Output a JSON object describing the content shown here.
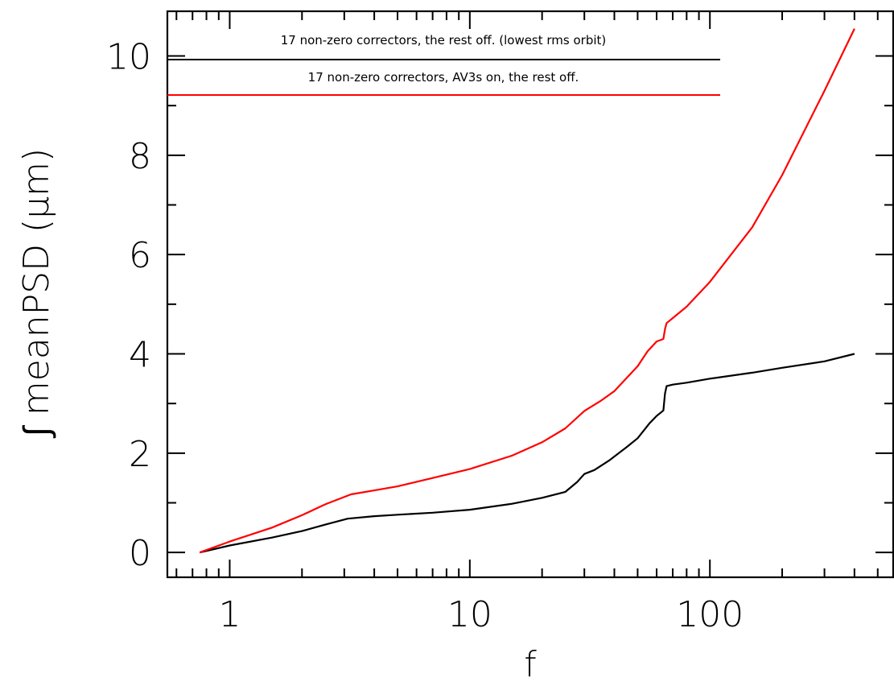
{
  "chart_data": {
    "type": "line",
    "title": "",
    "xlabel": "f",
    "ylabel": "∫ meanPSD  (μm)",
    "x_scale": "log",
    "xlim": [
      0.55,
      580
    ],
    "ylim": [
      -0.5,
      10.9
    ],
    "x_ticks": [
      1,
      10,
      100
    ],
    "x_tick_labels": [
      "1",
      "10",
      "100"
    ],
    "y_ticks": [
      0,
      2,
      4,
      6,
      8,
      10
    ],
    "y_tick_labels": [
      "0",
      "2",
      "4",
      "6",
      "8",
      "10"
    ],
    "grid": false,
    "legend_position": "top-left",
    "series": [
      {
        "name": "17 non-zero correctors, the rest off. (lowest rms orbit)",
        "color": "#000000",
        "x": [
          0.75,
          1,
          1.5,
          2,
          2.5,
          3.1,
          4,
          5,
          7,
          10,
          15,
          20,
          25,
          28,
          30,
          33,
          38,
          45,
          50,
          56,
          60,
          64,
          65,
          66,
          70,
          80,
          100,
          150,
          200,
          300,
          400
        ],
        "y": [
          0,
          0.14,
          0.3,
          0.43,
          0.56,
          0.68,
          0.73,
          0.76,
          0.8,
          0.86,
          0.98,
          1.1,
          1.22,
          1.42,
          1.58,
          1.66,
          1.85,
          2.12,
          2.3,
          2.6,
          2.75,
          2.86,
          3.2,
          3.35,
          3.38,
          3.42,
          3.5,
          3.62,
          3.72,
          3.85,
          4.0
        ]
      },
      {
        "name": "17 non-zero correctors, AV3s on, the rest off.",
        "color": "#ff0000",
        "x": [
          0.75,
          1,
          1.5,
          2,
          2.5,
          3.2,
          4,
          5,
          7,
          10,
          15,
          20,
          25,
          30,
          35,
          40,
          50,
          55,
          60,
          64,
          65,
          66,
          70,
          80,
          100,
          150,
          200,
          300,
          400
        ],
        "y": [
          0,
          0.22,
          0.5,
          0.75,
          0.97,
          1.17,
          1.25,
          1.33,
          1.5,
          1.68,
          1.95,
          2.22,
          2.5,
          2.85,
          3.05,
          3.25,
          3.75,
          4.05,
          4.25,
          4.3,
          4.5,
          4.62,
          4.72,
          4.95,
          5.45,
          6.55,
          7.6,
          9.3,
          10.55
        ]
      }
    ]
  }
}
